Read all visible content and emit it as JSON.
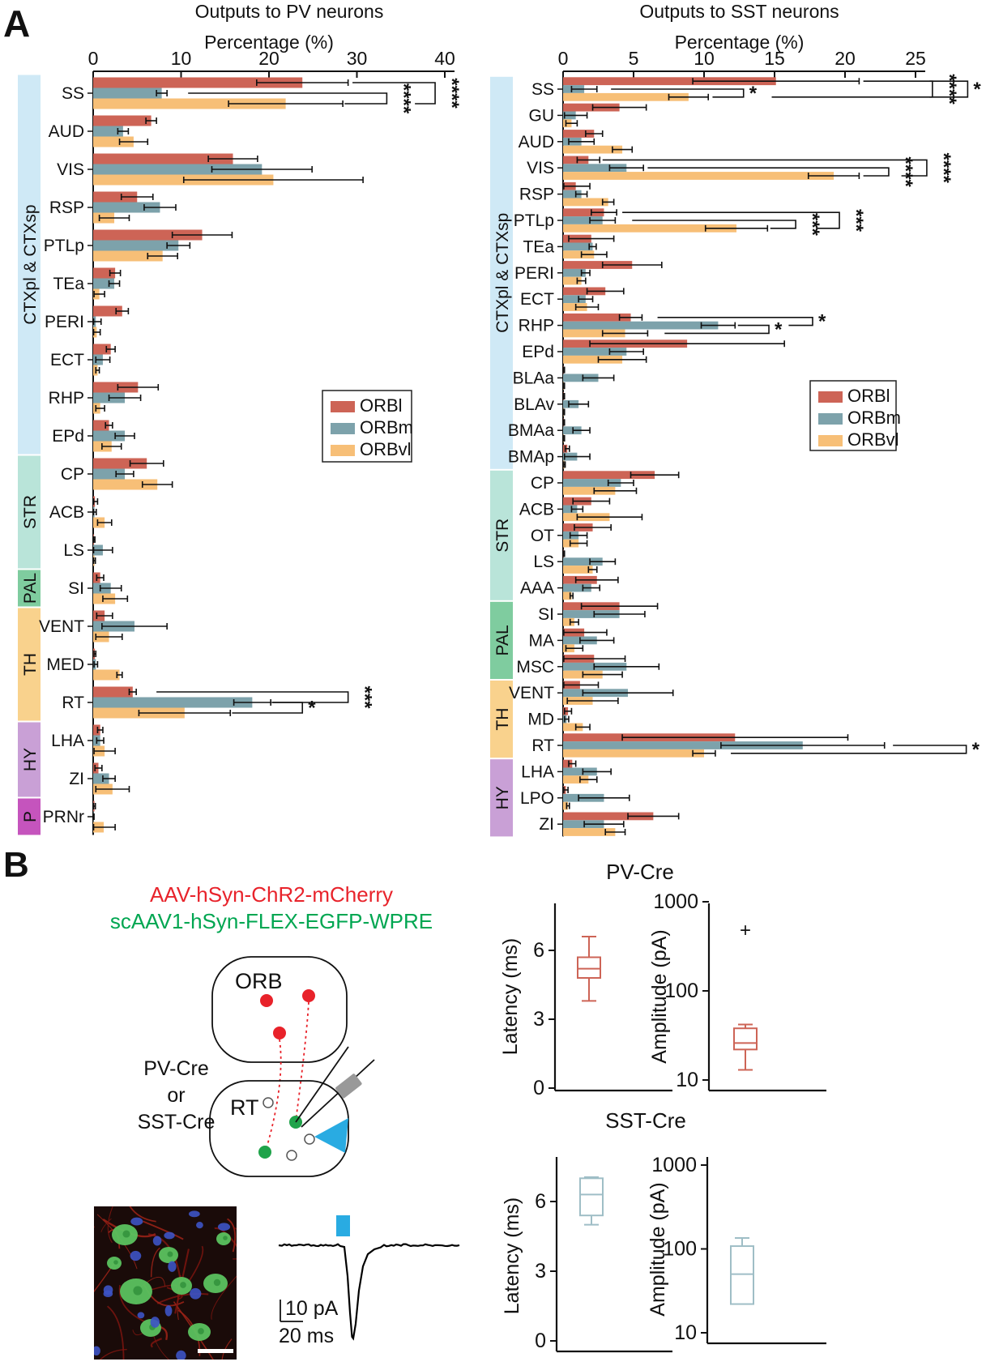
{
  "panel_a": {
    "label": "A"
  },
  "panel_b": {
    "label": "B",
    "virus_label_red": "AAV-hSyn-ChR2-mCherry",
    "virus_label_green": "scAAV1-hSyn-FLEX-EGFP-WPRE",
    "cre_lines": [
      "PV-Cre",
      "or",
      "SST-Cre"
    ],
    "orb_label": "ORB",
    "rt_label": "RT",
    "scalebar_current": "10 pA",
    "scalebar_time": "20 ms",
    "colors": {
      "virus_red": "#e8232b",
      "virus_green": "#00a651",
      "stim_blue": "#29abe2",
      "injection_dot_red": "#e8222a",
      "starter_dot_green": "#1fa34a"
    }
  },
  "chart_data": [
    {
      "id": "outputs_to_pv",
      "type": "bar",
      "orientation": "horizontal-grouped",
      "title": "Outputs to PV neurons",
      "xlabel": "Percentage (%)",
      "x_ticks": [
        0,
        10,
        20,
        30,
        40
      ],
      "xlim": [
        0,
        40
      ],
      "colors": {
        "ORBl": "#cd6456",
        "ORBm": "#7da2ab",
        "ORBvl": "#f7bf77"
      },
      "legend": [
        "ORBl",
        "ORBm",
        "ORBvl"
      ],
      "groups": [
        {
          "label": "CTXpl & CTXsp",
          "color": "#cfe9f6",
          "from": "SS",
          "to": "EPd"
        },
        {
          "label": "STR",
          "color": "#b9e4d9",
          "from": "CP",
          "to": "LS"
        },
        {
          "label": "PAL",
          "color": "#7fcc9f",
          "from": "SI",
          "to": "SI"
        },
        {
          "label": "TH",
          "color": "#f9d28d",
          "from": "VENT",
          "to": "RT"
        },
        {
          "label": "HY",
          "color": "#c9a0d6",
          "from": "LHA",
          "to": "ZI"
        },
        {
          "label": "P",
          "color": "#c554bd",
          "from": "PRNr",
          "to": "PRNr"
        }
      ],
      "categories": [
        "SS",
        "AUD",
        "VIS",
        "RSP",
        "PTLp",
        "TEa",
        "PERI",
        "ECT",
        "RHP",
        "EPd",
        "CP",
        "ACB",
        "LS",
        "SI",
        "VENT",
        "MED",
        "RT",
        "LHA",
        "ZI",
        "PRNr"
      ],
      "series": [
        {
          "name": "ORBl",
          "values": [
            23.8,
            6.6,
            15.9,
            5.0,
            12.4,
            2.5,
            3.3,
            2.0,
            5.1,
            1.8,
            6.1,
            0.2,
            0.1,
            0.8,
            1.3,
            0.2,
            4.5,
            0.8,
            0.6,
            0.15
          ],
          "errors": [
            5.2,
            0.6,
            2.8,
            1.8,
            3.4,
            0.6,
            0.7,
            0.5,
            2.3,
            0.4,
            1.9,
            0.3,
            0.1,
            0.4,
            0.9,
            0.1,
            0.4,
            0.3,
            0.4,
            0.1
          ]
        },
        {
          "name": "ORBm",
          "values": [
            7.8,
            3.4,
            19.2,
            7.6,
            9.7,
            2.4,
            0.3,
            1.1,
            3.6,
            3.6,
            3.6,
            0.15,
            1.1,
            2.0,
            4.7,
            0.3,
            18.1,
            0.8,
            1.8,
            0.05
          ],
          "errors": [
            0.6,
            0.6,
            5.7,
            1.8,
            1.3,
            0.6,
            0.6,
            0.8,
            1.8,
            1.1,
            1.0,
            0.2,
            1.1,
            1.2,
            3.7,
            0.2,
            2.1,
            0.4,
            0.7,
            0.05
          ]
        },
        {
          "name": "ORBvl",
          "values": [
            21.9,
            4.6,
            20.5,
            2.4,
            7.9,
            0.7,
            0.4,
            0.5,
            0.8,
            2.1,
            7.3,
            1.3,
            0.15,
            2.5,
            1.8,
            3.0,
            10.4,
            1.3,
            2.2,
            1.2
          ],
          "errors": [
            6.5,
            1.6,
            10.2,
            1.7,
            1.7,
            0.6,
            0.4,
            0.2,
            0.5,
            1.1,
            1.7,
            0.8,
            0.1,
            1.4,
            1.5,
            0.3,
            5.2,
            1.2,
            1.9,
            1.3
          ]
        }
      ],
      "significance": [
        {
          "category": "SS",
          "pair": [
            "ORBm",
            "ORBvl"
          ],
          "x": 33.4,
          "stars": "****",
          "arm1": 10.8,
          "arm2": 28.6
        },
        {
          "category": "SS",
          "pair": [
            "ORBl",
            "ORBvl"
          ],
          "x": 38.9,
          "stars": "****",
          "arm1": 29.5,
          "arm2": 36.6
        },
        {
          "category": "RT",
          "pair": [
            "ORBm",
            "ORBvl"
          ],
          "x": 23.8,
          "stars": "*",
          "arm1": 20.3,
          "arm2": 15.8
        },
        {
          "category": "RT",
          "pair": [
            "ORBl",
            "ORBm"
          ],
          "x": 29.0,
          "stars": "***",
          "arm1": 7.2,
          "arm2": 20.4
        }
      ]
    },
    {
      "id": "outputs_to_sst",
      "type": "bar",
      "orientation": "horizontal-grouped",
      "title": "Outputs to SST neurons",
      "xlabel": "Percentage (%)",
      "x_ticks": [
        0,
        5,
        10,
        15,
        20,
        25
      ],
      "xlim": [
        0,
        25
      ],
      "colors": {
        "ORBl": "#cd6456",
        "ORBm": "#7da2ab",
        "ORBvl": "#f7bf77"
      },
      "legend": [
        "ORBl",
        "ORBm",
        "ORBvl"
      ],
      "groups": [
        {
          "label": "CTXpl & CTXsp",
          "color": "#cfe9f6",
          "from": "SS",
          "to": "BMAp"
        },
        {
          "label": "STR",
          "color": "#b9e4d9",
          "from": "CP",
          "to": "AAA"
        },
        {
          "label": "PAL",
          "color": "#7fcc9f",
          "from": "SI",
          "to": "MSC"
        },
        {
          "label": "TH",
          "color": "#f9d28d",
          "from": "VENT",
          "to": "RT"
        },
        {
          "label": "HY",
          "color": "#c9a0d6",
          "from": "LHA",
          "to": "ZI"
        }
      ],
      "categories": [
        "SS",
        "GU",
        "AUD",
        "VIS",
        "RSP",
        "PTLp",
        "TEa",
        "PERI",
        "ECT",
        "RHP",
        "EPd",
        "BLAa",
        "BLAv",
        "BMAa",
        "BMAp",
        "CP",
        "ACB",
        "OT",
        "LS",
        "AAA",
        "SI",
        "MA",
        "MSC",
        "VENT",
        "MD",
        "RT",
        "LHA",
        "LPO",
        "ZI"
      ],
      "series": [
        {
          "name": "ORBl",
          "values": [
            15.1,
            4.0,
            2.2,
            1.8,
            0.9,
            2.9,
            2.0,
            4.9,
            3.0,
            4.8,
            8.8,
            0.05,
            0.05,
            0.05,
            0.3,
            6.5,
            2.0,
            2.1,
            0.05,
            2.4,
            4.0,
            1.5,
            2.2,
            1.2,
            0.35,
            12.2,
            0.65,
            0.2,
            6.4
          ],
          "errors": [
            5.9,
            1.9,
            0.6,
            0.8,
            1.0,
            0.9,
            1.6,
            2.1,
            1.3,
            0.8,
            6.9,
            0.05,
            0.05,
            0.05,
            0.15,
            1.7,
            1.3,
            1.3,
            0.05,
            1.5,
            2.7,
            1.6,
            2.2,
            1.3,
            0.25,
            8.0,
            0.25,
            0.15,
            1.8
          ]
        },
        {
          "name": "ORBm",
          "values": [
            1.5,
            0.9,
            1.3,
            4.5,
            1.3,
            2.8,
            2.1,
            1.6,
            1.6,
            11.0,
            4.5,
            2.5,
            1.1,
            1.3,
            1.0,
            4.1,
            1.0,
            1.1,
            2.8,
            2.0,
            4.0,
            2.4,
            4.5,
            4.6,
            0.25,
            17.0,
            2.4,
            2.9,
            2.9
          ],
          "errors": [
            0.9,
            0.8,
            0.9,
            1.2,
            0.4,
            0.9,
            0.25,
            0.3,
            0.5,
            1.2,
            1.2,
            1.1,
            0.7,
            0.6,
            0.9,
            0.9,
            0.4,
            0.6,
            0.9,
            0.6,
            1.8,
            1.2,
            2.3,
            3.2,
            0.15,
            5.8,
            1.0,
            1.8,
            1.4
          ]
        },
        {
          "name": "ORBvl",
          "values": [
            8.9,
            0.6,
            4.2,
            19.2,
            3.2,
            12.3,
            2.2,
            1.3,
            1.7,
            4.4,
            4.2,
            0.05,
            0.05,
            0.05,
            0.1,
            3.7,
            3.3,
            1.1,
            2.1,
            0.6,
            0.8,
            0.8,
            2.8,
            2.1,
            1.4,
            10.0,
            1.8,
            0.35,
            3.7
          ],
          "errors": [
            1.4,
            0.4,
            0.7,
            1.8,
            0.4,
            2.2,
            0.9,
            0.3,
            0.8,
            1.6,
            1.7,
            0.05,
            0.05,
            0.05,
            0.05,
            1.5,
            2.3,
            0.6,
            0.3,
            0.1,
            0.3,
            0.6,
            1.4,
            1.8,
            0.5,
            0.8,
            0.6,
            0.1,
            0.7
          ]
        }
      ],
      "significance": [
        {
          "category": "SS",
          "pair": [
            "ORBm",
            "ORBvl"
          ],
          "x": 12.8,
          "stars": "*",
          "arm1": 3.4,
          "arm2": 10.6
        },
        {
          "category": "SS",
          "pair": [
            "ORBl",
            "ORBvl"
          ],
          "x": 26.2,
          "stars": "****",
          "arm1": 21.3,
          "arm2": 14.8
        },
        {
          "category": "SS",
          "pair": [
            "ORBl",
            "ORBvl"
          ],
          "x": 28.7,
          "stars": "*",
          "arm1": 26.0,
          "arm2": 26.0
        },
        {
          "category": "VIS",
          "pair": [
            "ORBm",
            "ORBvl"
          ],
          "x": 23.1,
          "stars": "****",
          "arm1": 6.0,
          "arm2": 21.3
        },
        {
          "category": "VIS",
          "pair": [
            "ORBl",
            "ORBvl"
          ],
          "x": 25.8,
          "stars": "****",
          "arm1": 2.8,
          "arm2": 24.0
        },
        {
          "category": "PTLp",
          "pair": [
            "ORBm",
            "ORBvl"
          ],
          "x": 16.5,
          "stars": "***",
          "arm1": 4.9,
          "arm2": 14.7
        },
        {
          "category": "PTLp",
          "pair": [
            "ORBl",
            "ORBvl"
          ],
          "x": 19.6,
          "stars": "***",
          "arm1": 4.2,
          "arm2": 18.0
        },
        {
          "category": "RHP",
          "pair": [
            "ORBm",
            "ORBvl"
          ],
          "x": 14.6,
          "stars": "*",
          "arm1": 12.4,
          "arm2": 7.2
        },
        {
          "category": "RHP",
          "pair": [
            "ORBl",
            "ORBm"
          ],
          "x": 17.7,
          "stars": "*",
          "arm1": 6.7,
          "arm2": 16.0
        },
        {
          "category": "RT",
          "pair": [
            "ORBm",
            "ORBvl"
          ],
          "x": 28.6,
          "stars": "*",
          "arm1": 23.4,
          "arm2": 11.9
        }
      ]
    },
    {
      "id": "pv_latency",
      "type": "box",
      "group_title": "PV-Cre",
      "ylabel": "Latency (ms)",
      "yticks": [
        0,
        3,
        6
      ],
      "scale": "linear",
      "color": "#cd6456",
      "box": {
        "whisker_low": 3.8,
        "q1": 4.8,
        "median": 5.2,
        "q3": 5.7,
        "whisker_high": 6.6,
        "outliers": []
      }
    },
    {
      "id": "pv_amplitude",
      "type": "box",
      "group_title": "PV-Cre",
      "ylabel": "Amplitude (pA)",
      "yticks": [
        10,
        100,
        1000
      ],
      "scale": "log",
      "color": "#cd6456",
      "box": {
        "whisker_low": 13,
        "q1": 22,
        "median": 26,
        "q3": 38,
        "whisker_high": 42,
        "outliers": [
          470
        ]
      }
    },
    {
      "id": "sst_latency",
      "type": "box",
      "group_title": "SST-Cre",
      "ylabel": "Latency (ms)",
      "yticks": [
        0,
        3,
        6
      ],
      "scale": "linear",
      "color": "#9fbec6",
      "box": {
        "whisker_low": 5.0,
        "q1": 5.4,
        "median": 6.3,
        "q3": 7.0,
        "whisker_high": 7.05,
        "outliers": []
      }
    },
    {
      "id": "sst_amplitude",
      "type": "box",
      "group_title": "SST-Cre",
      "ylabel": "Amplitude (pA)",
      "yticks": [
        10,
        100,
        1000
      ],
      "scale": "log",
      "color": "#9fbec6",
      "box": {
        "whisker_low": 22,
        "q1": 22,
        "median": 50,
        "q3": 108,
        "whisker_high": 135,
        "outliers": []
      }
    },
    {
      "id": "example_trace",
      "type": "line",
      "stim_color": "#29abe2",
      "scalebar_current": "10 pA",
      "scalebar_time": "20 ms",
      "peak_amplitude_pa": -42
    }
  ]
}
